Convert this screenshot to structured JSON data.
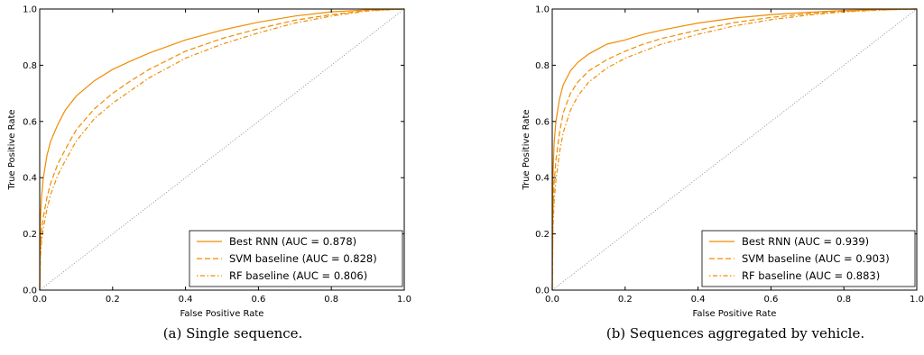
{
  "colors": {
    "series": "#f08c00",
    "chance": "#888888",
    "axis": "#000000"
  },
  "chart_data": [
    {
      "type": "line",
      "caption": "(a) Single sequence.",
      "xlabel": "False Positive Rate",
      "ylabel": "True Positive Rate",
      "xlim": [
        0,
        1
      ],
      "ylim": [
        0,
        1
      ],
      "xticks": [
        "0.0",
        "0.2",
        "0.4",
        "0.6",
        "0.8",
        "1.0"
      ],
      "yticks": [
        "0.0",
        "0.2",
        "0.4",
        "0.6",
        "0.8",
        "1.0"
      ],
      "grid": false,
      "legend_position": "bottom-right",
      "series": [
        {
          "name": "Best RNN (AUC = 0.878)",
          "style": "solid",
          "x": [
            0,
            0.002,
            0.005,
            0.01,
            0.02,
            0.03,
            0.05,
            0.07,
            0.1,
            0.15,
            0.2,
            0.25,
            0.3,
            0.4,
            0.5,
            0.6,
            0.7,
            0.8,
            0.9,
            1.0
          ],
          "y": [
            0,
            0.25,
            0.33,
            0.4,
            0.48,
            0.53,
            0.59,
            0.64,
            0.69,
            0.745,
            0.785,
            0.815,
            0.843,
            0.89,
            0.925,
            0.953,
            0.975,
            0.99,
            0.997,
            1.0
          ]
        },
        {
          "name": "SVM baseline (AUC = 0.828)",
          "style": "dashed",
          "x": [
            0,
            0.002,
            0.005,
            0.01,
            0.02,
            0.03,
            0.05,
            0.07,
            0.1,
            0.15,
            0.2,
            0.25,
            0.3,
            0.4,
            0.5,
            0.6,
            0.7,
            0.8,
            0.9,
            1.0
          ],
          "y": [
            0,
            0.15,
            0.21,
            0.26,
            0.33,
            0.38,
            0.45,
            0.5,
            0.57,
            0.645,
            0.7,
            0.745,
            0.785,
            0.85,
            0.895,
            0.93,
            0.96,
            0.98,
            0.995,
            1.0
          ]
        },
        {
          "name": "RF baseline (AUC = 0.806)",
          "style": "dashdot",
          "x": [
            0,
            0.002,
            0.005,
            0.01,
            0.02,
            0.03,
            0.05,
            0.07,
            0.1,
            0.15,
            0.2,
            0.25,
            0.3,
            0.4,
            0.5,
            0.6,
            0.7,
            0.8,
            0.9,
            1.0
          ],
          "y": [
            0,
            0.12,
            0.17,
            0.22,
            0.29,
            0.34,
            0.41,
            0.46,
            0.53,
            0.61,
            0.665,
            0.71,
            0.755,
            0.825,
            0.875,
            0.915,
            0.95,
            0.975,
            0.993,
            1.0
          ]
        }
      ]
    },
    {
      "type": "line",
      "caption": "(b) Sequences aggregated by vehicle.",
      "xlabel": "False Positive Rate",
      "ylabel": "True Positive Rate",
      "xlim": [
        0,
        1
      ],
      "ylim": [
        0,
        1
      ],
      "xticks": [
        "0.0",
        "0.2",
        "0.4",
        "0.6",
        "0.8",
        "1.0"
      ],
      "yticks": [
        "0.0",
        "0.2",
        "0.4",
        "0.6",
        "0.8",
        "1.0"
      ],
      "grid": false,
      "legend_position": "bottom-right",
      "series": [
        {
          "name": "Best RNN (AUC = 0.939)",
          "style": "solid",
          "x": [
            0,
            0.002,
            0.005,
            0.01,
            0.02,
            0.03,
            0.05,
            0.07,
            0.1,
            0.15,
            0.2,
            0.25,
            0.3,
            0.4,
            0.5,
            0.6,
            0.7,
            0.8,
            0.9,
            1.0
          ],
          "y": [
            0,
            0.4,
            0.52,
            0.6,
            0.68,
            0.73,
            0.78,
            0.81,
            0.84,
            0.875,
            0.89,
            0.91,
            0.925,
            0.95,
            0.968,
            0.98,
            0.988,
            0.995,
            0.998,
            1.0
          ]
        },
        {
          "name": "SVM baseline (AUC = 0.903)",
          "style": "dashed",
          "x": [
            0,
            0.002,
            0.005,
            0.01,
            0.02,
            0.03,
            0.05,
            0.07,
            0.1,
            0.15,
            0.2,
            0.25,
            0.3,
            0.4,
            0.5,
            0.6,
            0.7,
            0.8,
            0.9,
            1.0
          ],
          "y": [
            0,
            0.28,
            0.38,
            0.46,
            0.56,
            0.63,
            0.7,
            0.74,
            0.78,
            0.82,
            0.85,
            0.875,
            0.895,
            0.925,
            0.952,
            0.97,
            0.983,
            0.992,
            0.997,
            1.0
          ]
        },
        {
          "name": "RF baseline (AUC = 0.883)",
          "style": "dashdot",
          "x": [
            0,
            0.002,
            0.005,
            0.01,
            0.02,
            0.03,
            0.05,
            0.07,
            0.1,
            0.15,
            0.2,
            0.25,
            0.3,
            0.4,
            0.5,
            0.6,
            0.7,
            0.8,
            0.9,
            1.0
          ],
          "y": [
            0,
            0.22,
            0.31,
            0.39,
            0.49,
            0.56,
            0.64,
            0.69,
            0.74,
            0.79,
            0.825,
            0.85,
            0.875,
            0.91,
            0.94,
            0.962,
            0.978,
            0.99,
            0.996,
            1.0
          ]
        }
      ]
    }
  ]
}
